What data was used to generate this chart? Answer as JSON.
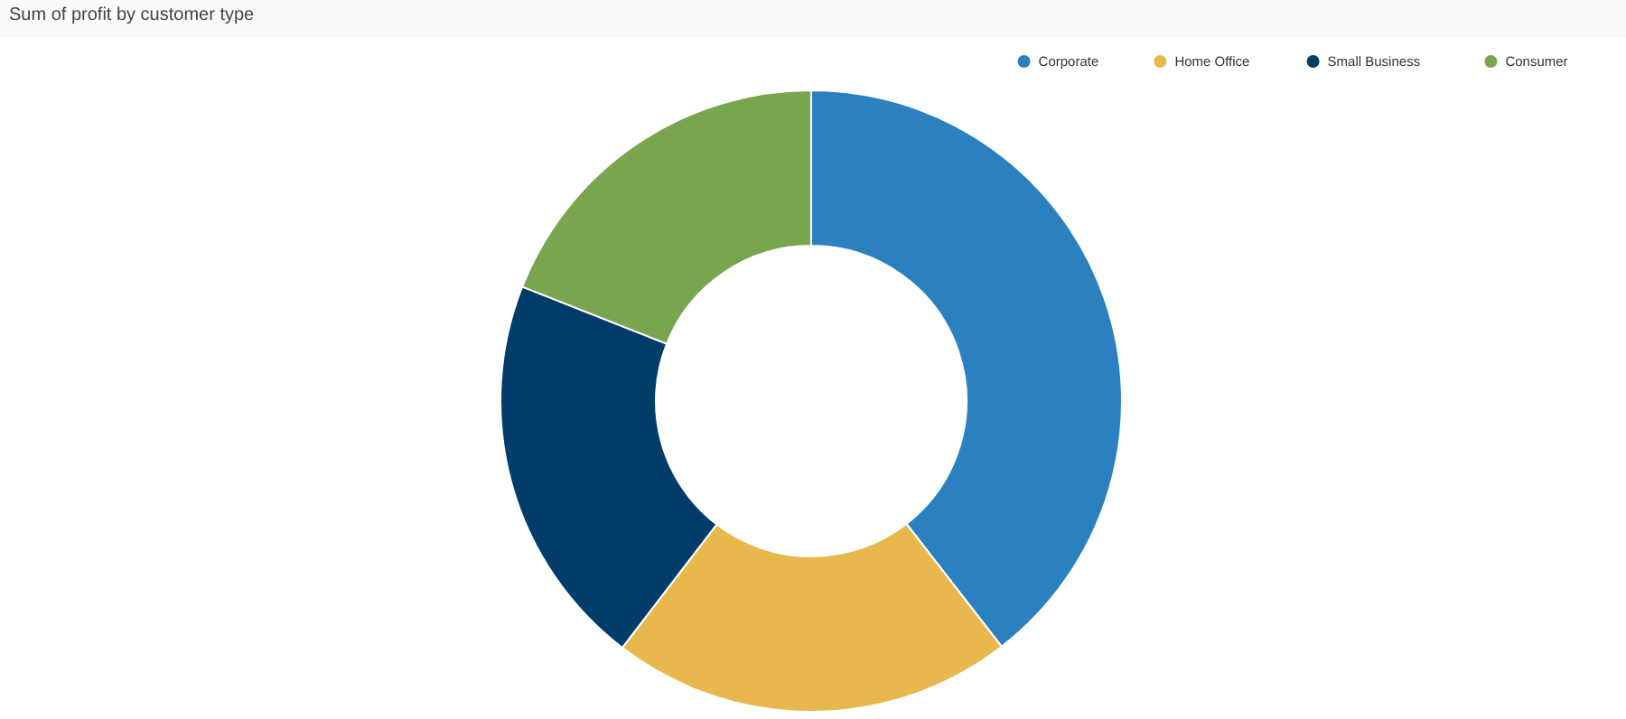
{
  "chart_data": {
    "type": "donut",
    "title": "Sum of profit by customer type",
    "categories": [
      "Corporate",
      "Home Office",
      "Small Business",
      "Consumer"
    ],
    "values": [
      39.5,
      20.9,
      20.6,
      19.0
    ],
    "colors": [
      "#2b80bf",
      "#e8b84e",
      "#023c69",
      "#78a54d"
    ],
    "legend": "top right"
  }
}
